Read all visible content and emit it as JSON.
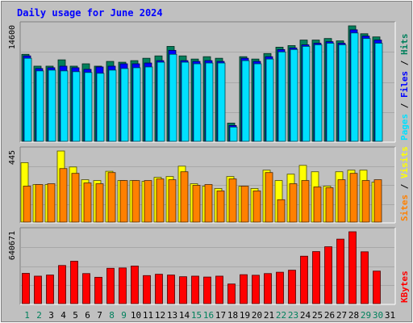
{
  "chart_data": {
    "type": "bar",
    "title": "Daily usage for June 2024",
    "categories": [
      "1",
      "2",
      "3",
      "4",
      "5",
      "6",
      "7",
      "8",
      "9",
      "10",
      "11",
      "12",
      "13",
      "14",
      "15",
      "16",
      "17",
      "18",
      "19",
      "20",
      "21",
      "22",
      "23",
      "24",
      "25",
      "26",
      "27",
      "28",
      "29",
      "30",
      "31"
    ],
    "weekend_days": [
      "1",
      "2",
      "8",
      "9",
      "15",
      "16",
      "22",
      "23",
      "29",
      "30"
    ],
    "panels": [
      {
        "key": "pages_files_hits",
        "max_label": "14600",
        "ylim": [
          0,
          14600
        ],
        "grid": true,
        "series": [
          {
            "name": "Hits",
            "color": "#00805c",
            "values": [
              11000,
              9500,
              9500,
              10300,
              9500,
              9800,
              9500,
              10100,
              10000,
              10200,
              10500,
              10800,
              12000,
              10800,
              10400,
              10700,
              10500,
              2300,
              10700,
              10400,
              11100,
              11900,
              12100,
              12800,
              12800,
              13000,
              12700,
              14600,
              13600,
              13200,
              null
            ]
          },
          {
            "name": "Files",
            "color": "#0000ff",
            "values": [
              10800,
              9200,
              9300,
              9500,
              9300,
              9100,
              9400,
              9500,
              9800,
              9800,
              9900,
              10200,
              11500,
              10200,
              10100,
              10200,
              10100,
              2000,
              10500,
              10100,
              10700,
              11600,
              11800,
              12200,
              12400,
              12600,
              12400,
              14100,
              13300,
              12800,
              null
            ]
          },
          {
            "name": "Pages",
            "color": "#00e0ff",
            "values": [
              10500,
              8900,
              9000,
              8900,
              8800,
              8700,
              8600,
              9000,
              9200,
              9300,
              9400,
              10000,
              11000,
              10000,
              9800,
              9900,
              9900,
              1800,
              10200,
              9800,
              10400,
              11300,
              11600,
              12000,
              12200,
              12400,
              12200,
              13700,
              13000,
              12400,
              null
            ]
          }
        ]
      },
      {
        "key": "visits_sites",
        "max_label": "445",
        "ylim": [
          0,
          445
        ],
        "grid": true,
        "series": [
          {
            "name": "Visits",
            "color": "#ffff00",
            "values": [
              372,
              235,
              235,
              445,
              345,
              265,
              260,
              318,
              260,
              260,
              255,
              280,
              285,
              350,
              240,
              225,
              210,
              285,
              225,
              210,
              325,
              260,
              300,
              355,
              315,
              225,
              315,
              325,
              325,
              250,
              null
            ]
          },
          {
            "name": "Sites",
            "color": "#ff8000",
            "values": [
              225,
              235,
              240,
              335,
              305,
              245,
              240,
              310,
              260,
              260,
              260,
              270,
              265,
              315,
              230,
              235,
              195,
              270,
              225,
              195,
              310,
              140,
              240,
              260,
              220,
              215,
              265,
              305,
              260,
              265,
              null
            ]
          }
        ]
      },
      {
        "key": "kbytes",
        "max_label": "640671",
        "ylim": [
          0,
          640671
        ],
        "grid": true,
        "series": [
          {
            "name": "KBytes",
            "color": "#ff0000",
            "values": [
              270000,
              245000,
              255000,
              340000,
              378000,
              268000,
              235000,
              315000,
              318000,
              335000,
              250000,
              262000,
              255000,
              240000,
              245000,
              237000,
              245000,
              175000,
              258000,
              253000,
              268000,
              280000,
              298000,
              423000,
              464000,
              507000,
              575000,
              640671,
              462000,
              290000,
              null
            ]
          }
        ]
      }
    ],
    "legend_placement": "right",
    "colors": {
      "background": "#c0c0c0",
      "plot_area": "#c0c0c0",
      "title": "#0000ff",
      "weekday_label": "#000000",
      "weekend_label": "#00805c"
    }
  }
}
